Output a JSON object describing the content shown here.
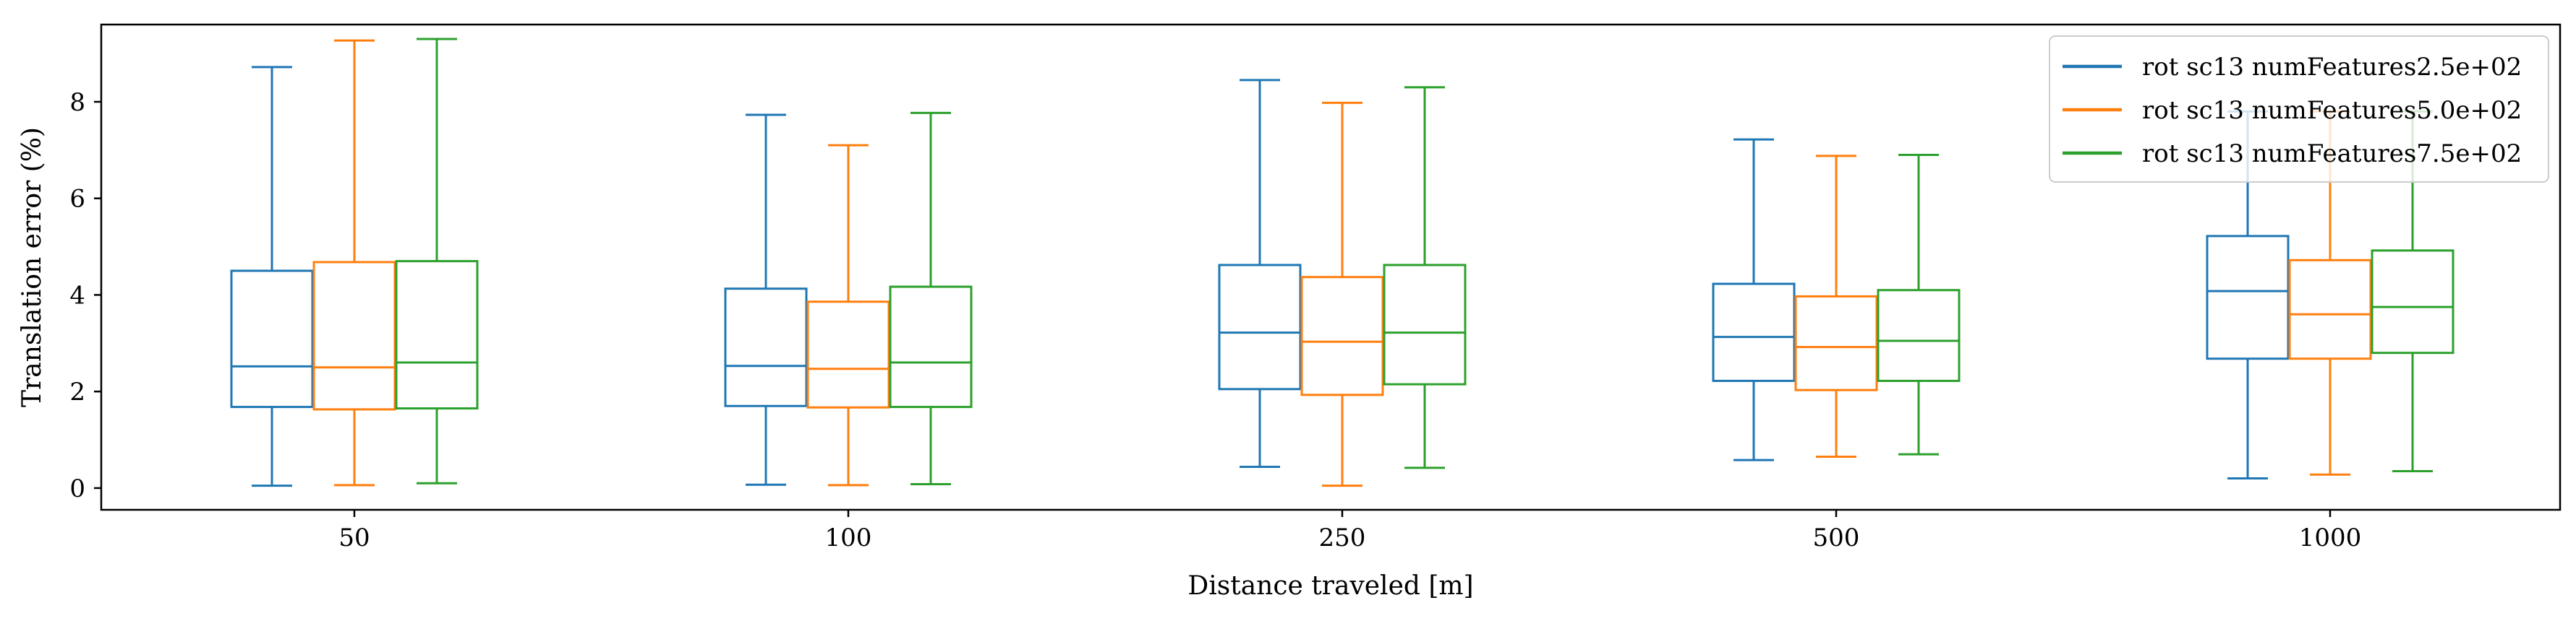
{
  "chart_data": {
    "type": "box",
    "title": "",
    "xlabel": "Distance traveled [m]",
    "ylabel": "Translation error (%)",
    "categories": [
      "50",
      "100",
      "250",
      "500",
      "1000"
    ],
    "ylim": [
      -0.45,
      9.6
    ],
    "yticks": [
      "0",
      "2",
      "4",
      "6",
      "8"
    ],
    "grid": false,
    "legend_position": "top-right",
    "series": [
      {
        "name": "rot sc13 numFeatures2.5e+02",
        "color": "#1f77b4",
        "boxes": [
          {
            "whislo": 0.05,
            "q1": 1.68,
            "med": 2.52,
            "q3": 4.5,
            "whishi": 8.72
          },
          {
            "whislo": 0.07,
            "q1": 1.7,
            "med": 2.53,
            "q3": 4.13,
            "whishi": 7.73
          },
          {
            "whislo": 0.44,
            "q1": 2.05,
            "med": 3.22,
            "q3": 4.62,
            "whishi": 8.45
          },
          {
            "whislo": 0.58,
            "q1": 2.22,
            "med": 3.13,
            "q3": 4.23,
            "whishi": 7.22
          },
          {
            "whislo": 0.2,
            "q1": 2.68,
            "med": 4.08,
            "q3": 5.22,
            "whishi": 7.8
          }
        ]
      },
      {
        "name": "rot sc13 numFeatures5.0e+02",
        "color": "#ff7f0e",
        "boxes": [
          {
            "whislo": 0.06,
            "q1": 1.63,
            "med": 2.5,
            "q3": 4.68,
            "whishi": 9.27
          },
          {
            "whislo": 0.06,
            "q1": 1.67,
            "med": 2.47,
            "q3": 3.86,
            "whishi": 7.1
          },
          {
            "whislo": 0.05,
            "q1": 1.93,
            "med": 3.03,
            "q3": 4.37,
            "whishi": 7.98
          },
          {
            "whislo": 0.65,
            "q1": 2.03,
            "med": 2.92,
            "q3": 3.97,
            "whishi": 6.88
          },
          {
            "whislo": 0.28,
            "q1": 2.68,
            "med": 3.6,
            "q3": 4.72,
            "whishi": 7.8
          }
        ]
      },
      {
        "name": "rot sc13 numFeatures7.5e+02",
        "color": "#2ca02c",
        "boxes": [
          {
            "whislo": 0.1,
            "q1": 1.65,
            "med": 2.6,
            "q3": 4.7,
            "whishi": 9.3
          },
          {
            "whislo": 0.08,
            "q1": 1.68,
            "med": 2.6,
            "q3": 4.17,
            "whishi": 7.77
          },
          {
            "whislo": 0.42,
            "q1": 2.15,
            "med": 3.22,
            "q3": 4.62,
            "whishi": 8.3
          },
          {
            "whislo": 0.7,
            "q1": 2.22,
            "med": 3.05,
            "q3": 4.1,
            "whishi": 6.9
          },
          {
            "whislo": 0.35,
            "q1": 2.8,
            "med": 3.75,
            "q3": 4.92,
            "whishi": 7.8
          }
        ]
      }
    ]
  }
}
